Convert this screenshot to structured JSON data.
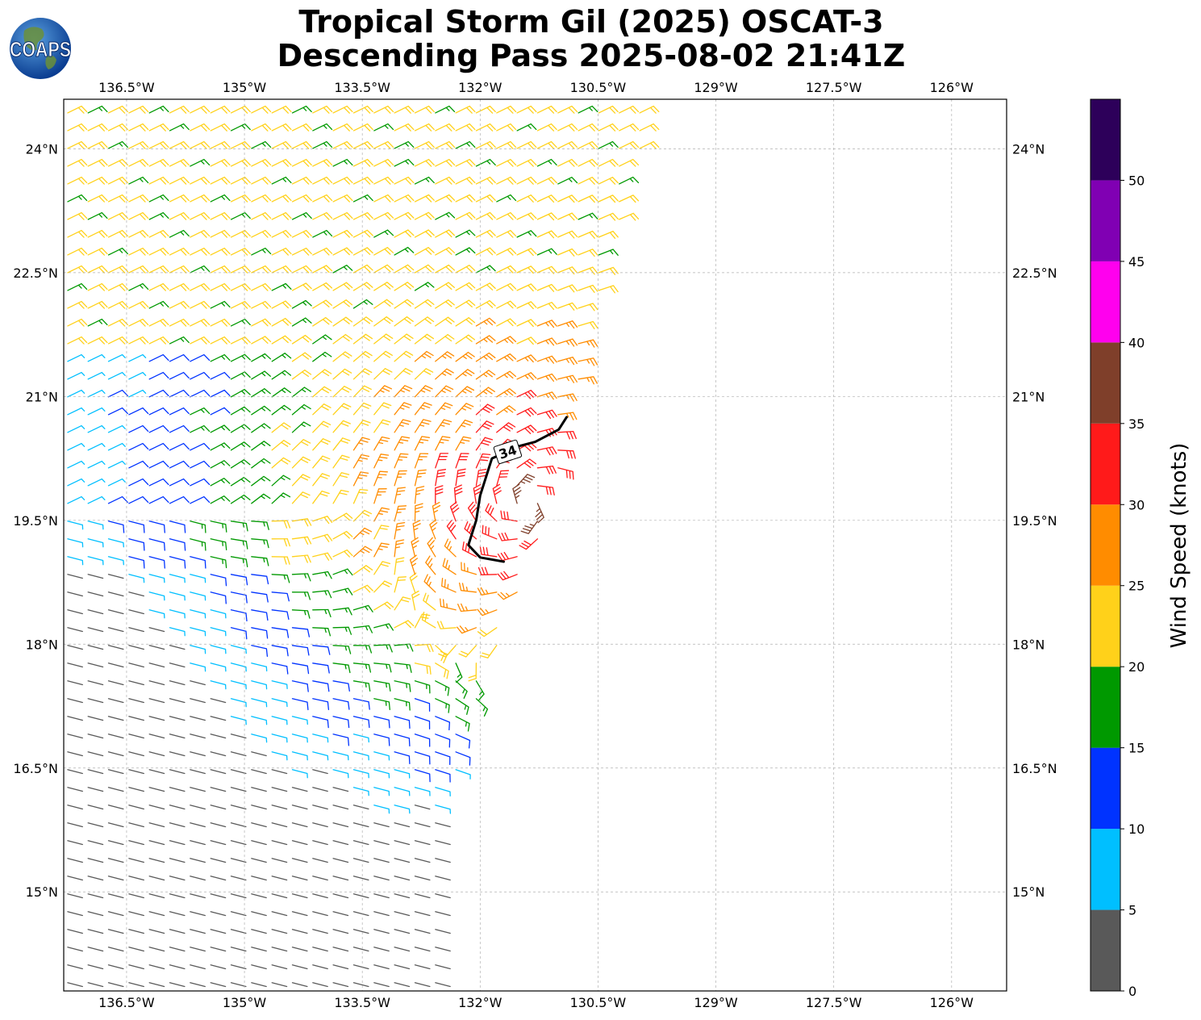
{
  "title": {
    "line1": "Tropical Storm Gil (2025) OSCAT-3",
    "line2": "Descending Pass 2025-08-02 21:41Z"
  },
  "logo": {
    "text": "COAPS",
    "icon": "globe-icon"
  },
  "map": {
    "lon_range": [
      -137.3,
      -125.3
    ],
    "lat_range": [
      13.8,
      24.6
    ],
    "gridlines": true,
    "lon_ticks": [
      {
        "value": -136.5,
        "label": "136.5°W"
      },
      {
        "value": -135,
        "label": "135°W"
      },
      {
        "value": -133.5,
        "label": "133.5°W"
      },
      {
        "value": -132,
        "label": "132°W"
      },
      {
        "value": -130.5,
        "label": "130.5°W"
      },
      {
        "value": -129,
        "label": "129°W"
      },
      {
        "value": -127.5,
        "label": "127.5°W"
      },
      {
        "value": -126,
        "label": "126°W"
      }
    ],
    "lat_ticks": [
      {
        "value": 24,
        "label": "24°N"
      },
      {
        "value": 22.5,
        "label": "22.5°N"
      },
      {
        "value": 21,
        "label": "21°N"
      },
      {
        "value": 19.5,
        "label": "19.5°N"
      },
      {
        "value": 18,
        "label": "18°N"
      },
      {
        "value": 16.5,
        "label": "16.5°N"
      },
      {
        "value": 15,
        "label": "15°N"
      }
    ],
    "storm_center": {
      "lon": -131.4,
      "lat": 19.7
    },
    "swath_edge": [
      [
        -129.8,
        24.6
      ],
      [
        -130.4,
        22.5
      ],
      [
        -130.8,
        21.0
      ],
      [
        -131.1,
        19.6
      ],
      [
        -131.9,
        17.7
      ],
      [
        -132.3,
        16.4
      ],
      [
        -132.5,
        13.8
      ]
    ],
    "wind_sample": [
      {
        "region": "north",
        "speed_kt": 22
      },
      {
        "region": "core",
        "speed_kt": 34
      },
      {
        "region": "south",
        "speed_kt": 12
      }
    ],
    "contour": {
      "label": "34",
      "points": [
        [
          -130.9,
          20.75
        ],
        [
          -131.0,
          20.6
        ],
        [
          -131.3,
          20.45
        ],
        [
          -131.5,
          20.4
        ],
        [
          -131.85,
          20.25
        ],
        [
          -132.0,
          19.8
        ],
        [
          -132.05,
          19.5
        ],
        [
          -132.15,
          19.2
        ],
        [
          -132.0,
          19.05
        ],
        [
          -131.7,
          19.0
        ]
      ]
    }
  },
  "colorbar": {
    "label": "Wind Speed (knots)",
    "bins": [
      {
        "min": 0,
        "max": 5,
        "color": "#595959"
      },
      {
        "min": 5,
        "max": 10,
        "color": "#00bfff"
      },
      {
        "min": 10,
        "max": 15,
        "color": "#0033ff"
      },
      {
        "min": 15,
        "max": 20,
        "color": "#009900"
      },
      {
        "min": 20,
        "max": 25,
        "color": "#ffd11a"
      },
      {
        "min": 25,
        "max": 30,
        "color": "#ff8c00"
      },
      {
        "min": 30,
        "max": 35,
        "color": "#ff1a1a"
      },
      {
        "min": 35,
        "max": 40,
        "color": "#7f3f2a"
      },
      {
        "min": 40,
        "max": 45,
        "color": "#ff00ee"
      },
      {
        "min": 45,
        "max": 50,
        "color": "#8000b3"
      },
      {
        "min": 50,
        "max": 55,
        "color": "#2d005a"
      }
    ],
    "ticks": [
      "0",
      "5",
      "10",
      "15",
      "20",
      "25",
      "30",
      "35",
      "40",
      "45",
      "50"
    ]
  }
}
